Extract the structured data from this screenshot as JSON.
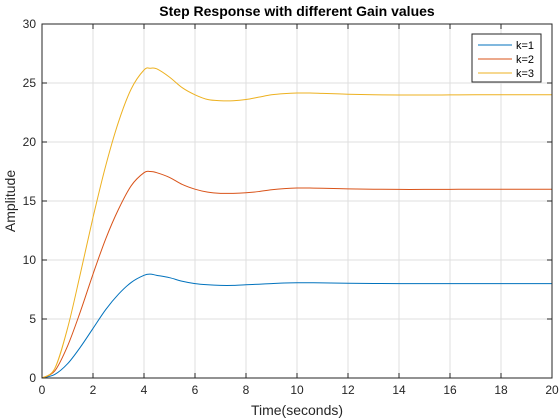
{
  "chart_data": {
    "type": "line",
    "title": "Step Response with different Gain values",
    "xlabel": "Time(seconds)",
    "ylabel": "Amplitude",
    "xlim": [
      0,
      20
    ],
    "ylim": [
      0,
      30
    ],
    "xticks": [
      0,
      2,
      4,
      6,
      8,
      10,
      12,
      14,
      16,
      18,
      20
    ],
    "yticks": [
      0,
      5,
      10,
      15,
      20,
      25,
      30
    ],
    "grid": true,
    "legend_position": "top-right",
    "x": [
      0,
      0.5,
      1,
      1.5,
      2,
      2.5,
      3,
      3.5,
      4,
      4.25,
      4.5,
      5,
      5.5,
      6,
      6.5,
      7,
      7.5,
      8,
      8.5,
      9,
      9.5,
      10,
      10.5,
      11,
      12,
      13,
      14,
      15,
      16,
      17,
      18,
      19,
      20
    ],
    "series": [
      {
        "name": "k=1",
        "color": "#0072BD",
        "values": [
          0,
          0.3,
          1.2,
          2.6,
          4.2,
          5.8,
          7.1,
          8.1,
          8.7,
          8.8,
          8.7,
          8.5,
          8.2,
          8.0,
          7.9,
          7.85,
          7.85,
          7.9,
          7.95,
          8.0,
          8.05,
          8.07,
          8.07,
          8.06,
          8.03,
          8.01,
          8.0,
          8.0,
          8.0,
          8.0,
          8.0,
          8.0,
          8.0
        ]
      },
      {
        "name": "k=2",
        "color": "#D95319",
        "values": [
          0,
          0.6,
          2.7,
          5.6,
          8.8,
          11.8,
          14.3,
          16.3,
          17.4,
          17.5,
          17.4,
          17.0,
          16.4,
          16.0,
          15.75,
          15.65,
          15.65,
          15.7,
          15.8,
          15.95,
          16.05,
          16.1,
          16.1,
          16.08,
          16.03,
          16.0,
          15.98,
          15.98,
          15.99,
          16.0,
          16.0,
          16.0,
          16.0
        ]
      },
      {
        "name": "k=3",
        "color": "#EDB120",
        "values": [
          0,
          0.8,
          4.2,
          8.8,
          13.6,
          18.0,
          21.7,
          24.5,
          26.1,
          26.25,
          26.2,
          25.5,
          24.6,
          24.0,
          23.6,
          23.5,
          23.5,
          23.6,
          23.8,
          24.0,
          24.1,
          24.15,
          24.15,
          24.12,
          24.05,
          24.0,
          23.98,
          23.98,
          23.99,
          24.0,
          24.0,
          24.0,
          24.0
        ]
      }
    ]
  }
}
